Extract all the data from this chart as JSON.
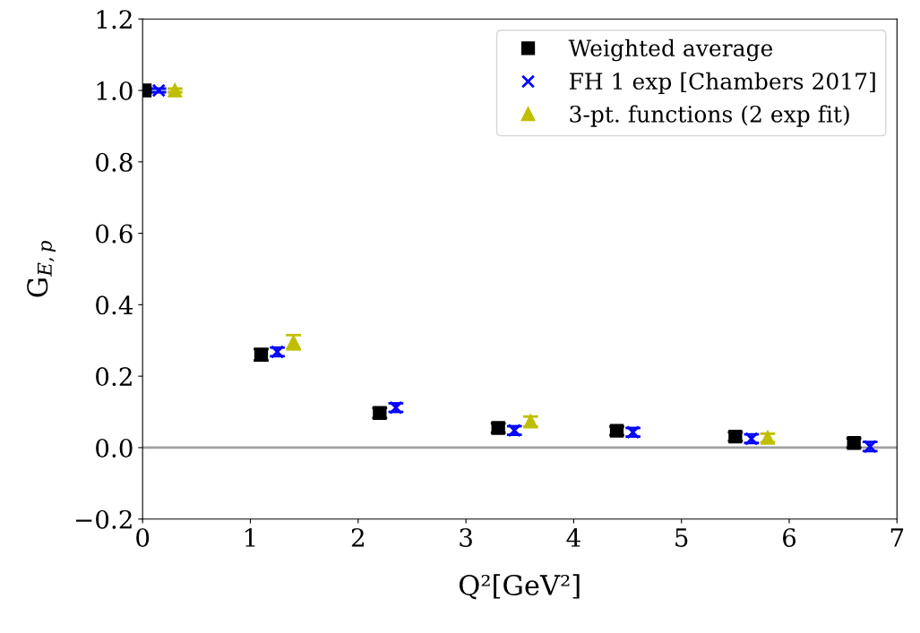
{
  "chart_data": {
    "type": "scatter",
    "xlabel": "Q²[GeV²]",
    "ylabel": "G$_{E,p}$",
    "xlim": [
      0,
      7
    ],
    "xticks": [
      0,
      1,
      2,
      3,
      4,
      5,
      6,
      7
    ],
    "ylim": [
      -0.2,
      1.2
    ],
    "yticks": [
      {
        "value": -0.2,
        "label": "−0.2"
      },
      {
        "value": 0,
        "label": "0.0"
      },
      {
        "value": 0.2,
        "label": "0.2"
      },
      {
        "value": 0.4,
        "label": "0.4"
      },
      {
        "value": 0.6,
        "label": "0.6"
      },
      {
        "value": 0.8,
        "label": "0.8"
      },
      {
        "value": 1.0,
        "label": "1.0"
      },
      {
        "value": 1.2,
        "label": "1.2"
      }
    ],
    "grid": false,
    "legend": "top right",
    "ref_lines": [
      {
        "axis": "y",
        "value": 0,
        "color": "#a0a0a0"
      }
    ],
    "series": [
      {
        "name": "Weighted average",
        "color": "#000000",
        "marker": "square",
        "x": [
          0.02,
          1.1,
          2.2,
          3.3,
          4.4,
          5.5,
          6.6
        ],
        "values": [
          1.0,
          0.26,
          0.097,
          0.055,
          0.047,
          0.031,
          0.013
        ],
        "errors": [
          0.005,
          0.016,
          0.014,
          0.013,
          0.012,
          0.012,
          0.013
        ]
      },
      {
        "name": "FH 1 exp [Chambers 2017]",
        "color": "#0000ff",
        "marker": "cross",
        "x": [
          0.15,
          1.25,
          2.35,
          3.45,
          4.55,
          5.65,
          6.75
        ],
        "values": [
          1.0,
          0.268,
          0.112,
          0.048,
          0.043,
          0.025,
          0.003
        ],
        "errors": [
          0.005,
          0.012,
          0.012,
          0.012,
          0.012,
          0.012,
          0.013
        ]
      },
      {
        "name": "3-pt. functions (2 exp fit)",
        "color": "#bfbf00",
        "marker": "triangle",
        "x": [
          0.3,
          1.4,
          3.6,
          5.8
        ],
        "values": [
          1.0,
          0.295,
          0.073,
          0.027
        ],
        "errors": [
          0.005,
          0.02,
          0.014,
          0.012
        ]
      }
    ]
  }
}
